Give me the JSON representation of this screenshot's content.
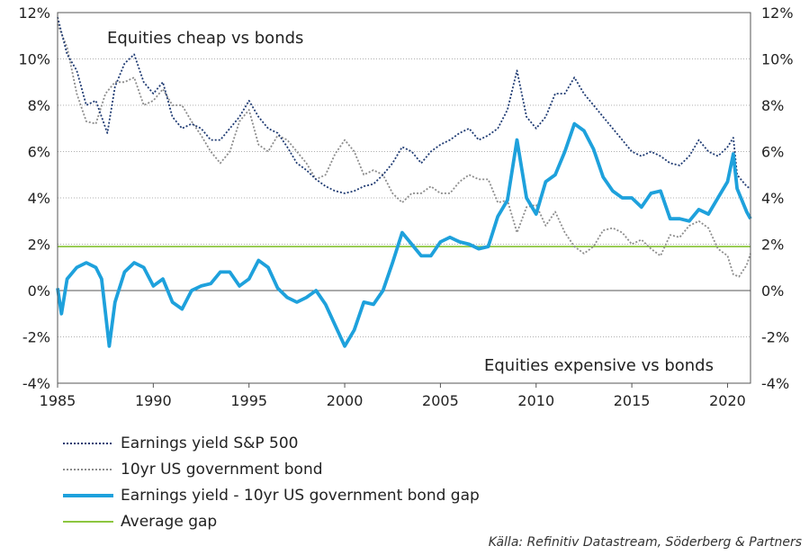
{
  "chart_data": {
    "type": "line",
    "x_range": [
      1985,
      2021.2
    ],
    "ylim": [
      -4,
      12
    ],
    "x_ticks": [
      1985,
      1990,
      1995,
      2000,
      2005,
      2010,
      2015,
      2020
    ],
    "x_tick_labels": [
      "1985",
      "1990",
      "1995",
      "2000",
      "2005",
      "2010",
      "2015",
      "2020"
    ],
    "y_ticks": [
      -4,
      -2,
      0,
      2,
      4,
      6,
      8,
      10,
      12
    ],
    "y_tick_labels": [
      "-4%",
      "-2%",
      "0%",
      "2%",
      "4%",
      "6%",
      "8%",
      "10%",
      "12%"
    ],
    "grid": "horizontal dotted",
    "legend_position": "bottom-left",
    "annotations": {
      "top": "Equities cheap vs bonds",
      "bottom": "Equities expensive vs bonds"
    },
    "series": [
      {
        "name": "Earnings yield S&P 500",
        "color": "#1f3b73",
        "style": "dotted",
        "points": [
          [
            1985,
            11.8
          ],
          [
            1985.5,
            10.2
          ],
          [
            1986,
            9.5
          ],
          [
            1986.5,
            8.0
          ],
          [
            1987,
            8.2
          ],
          [
            1987.6,
            6.8
          ],
          [
            1988,
            8.8
          ],
          [
            1988.5,
            9.8
          ],
          [
            1989,
            10.2
          ],
          [
            1989.5,
            9.0
          ],
          [
            1990,
            8.5
          ],
          [
            1990.5,
            9.0
          ],
          [
            1991,
            7.5
          ],
          [
            1991.5,
            7.0
          ],
          [
            1992,
            7.2
          ],
          [
            1992.5,
            7.0
          ],
          [
            1993,
            6.5
          ],
          [
            1993.5,
            6.5
          ],
          [
            1994,
            7.0
          ],
          [
            1994.5,
            7.5
          ],
          [
            1995,
            8.2
          ],
          [
            1995.5,
            7.5
          ],
          [
            1996,
            7.0
          ],
          [
            1996.5,
            6.8
          ],
          [
            1997,
            6.2
          ],
          [
            1997.5,
            5.5
          ],
          [
            1998,
            5.2
          ],
          [
            1998.5,
            4.8
          ],
          [
            1999,
            4.5
          ],
          [
            1999.5,
            4.3
          ],
          [
            2000,
            4.2
          ],
          [
            2000.5,
            4.3
          ],
          [
            2001,
            4.5
          ],
          [
            2001.5,
            4.6
          ],
          [
            2002,
            5.0
          ],
          [
            2002.5,
            5.5
          ],
          [
            2003,
            6.2
          ],
          [
            2003.5,
            6.0
          ],
          [
            2004,
            5.5
          ],
          [
            2004.5,
            6.0
          ],
          [
            2005,
            6.3
          ],
          [
            2005.5,
            6.5
          ],
          [
            2006,
            6.8
          ],
          [
            2006.5,
            7.0
          ],
          [
            2007,
            6.5
          ],
          [
            2007.5,
            6.7
          ],
          [
            2008,
            7.0
          ],
          [
            2008.5,
            7.8
          ],
          [
            2009,
            9.5
          ],
          [
            2009.5,
            7.5
          ],
          [
            2010,
            7.0
          ],
          [
            2010.5,
            7.5
          ],
          [
            2011,
            8.5
          ],
          [
            2011.5,
            8.5
          ],
          [
            2012,
            9.2
          ],
          [
            2012.5,
            8.5
          ],
          [
            2013,
            8.0
          ],
          [
            2013.5,
            7.5
          ],
          [
            2014,
            7.0
          ],
          [
            2014.5,
            6.5
          ],
          [
            2015,
            6.0
          ],
          [
            2015.5,
            5.8
          ],
          [
            2016,
            6.0
          ],
          [
            2016.5,
            5.8
          ],
          [
            2017,
            5.5
          ],
          [
            2017.5,
            5.4
          ],
          [
            2018,
            5.8
          ],
          [
            2018.5,
            6.5
          ],
          [
            2019,
            6.0
          ],
          [
            2019.5,
            5.8
          ],
          [
            2020,
            6.2
          ],
          [
            2020.3,
            6.6
          ],
          [
            2020.5,
            5.0
          ],
          [
            2021,
            4.5
          ],
          [
            2021.2,
            4.4
          ]
        ]
      },
      {
        "name": "10yr US government bond",
        "color": "#8c8c8c",
        "style": "dotted",
        "points": [
          [
            1985,
            11.5
          ],
          [
            1985.5,
            10.5
          ],
          [
            1986,
            8.5
          ],
          [
            1986.5,
            7.3
          ],
          [
            1987,
            7.2
          ],
          [
            1987.5,
            8.5
          ],
          [
            1988,
            9.0
          ],
          [
            1988.5,
            9.0
          ],
          [
            1989,
            9.2
          ],
          [
            1989.5,
            8.0
          ],
          [
            1990,
            8.2
          ],
          [
            1990.5,
            8.7
          ],
          [
            1991,
            8.0
          ],
          [
            1991.5,
            8.0
          ],
          [
            1992,
            7.3
          ],
          [
            1992.5,
            6.7
          ],
          [
            1993,
            6.0
          ],
          [
            1993.5,
            5.5
          ],
          [
            1994,
            6.0
          ],
          [
            1994.5,
            7.3
          ],
          [
            1995,
            7.8
          ],
          [
            1995.5,
            6.3
          ],
          [
            1996,
            6.0
          ],
          [
            1996.5,
            6.7
          ],
          [
            1997,
            6.5
          ],
          [
            1997.5,
            6.0
          ],
          [
            1998,
            5.5
          ],
          [
            1998.5,
            4.8
          ],
          [
            1999,
            5.0
          ],
          [
            1999.5,
            5.9
          ],
          [
            2000,
            6.5
          ],
          [
            2000.5,
            6.0
          ],
          [
            2001,
            5.0
          ],
          [
            2001.5,
            5.2
          ],
          [
            2002,
            5.0
          ],
          [
            2002.5,
            4.2
          ],
          [
            2003,
            3.8
          ],
          [
            2003.5,
            4.2
          ],
          [
            2004,
            4.2
          ],
          [
            2004.5,
            4.5
          ],
          [
            2005,
            4.2
          ],
          [
            2005.5,
            4.2
          ],
          [
            2006,
            4.7
          ],
          [
            2006.5,
            5.0
          ],
          [
            2007,
            4.8
          ],
          [
            2007.5,
            4.8
          ],
          [
            2008,
            3.8
          ],
          [
            2008.5,
            3.9
          ],
          [
            2009,
            2.5
          ],
          [
            2009.5,
            3.6
          ],
          [
            2010,
            3.7
          ],
          [
            2010.5,
            2.8
          ],
          [
            2011,
            3.4
          ],
          [
            2011.5,
            2.5
          ],
          [
            2012,
            1.9
          ],
          [
            2012.5,
            1.6
          ],
          [
            2013,
            1.9
          ],
          [
            2013.5,
            2.6
          ],
          [
            2014,
            2.7
          ],
          [
            2014.5,
            2.5
          ],
          [
            2015,
            2.0
          ],
          [
            2015.5,
            2.2
          ],
          [
            2016,
            1.8
          ],
          [
            2016.5,
            1.5
          ],
          [
            2017,
            2.4
          ],
          [
            2017.5,
            2.3
          ],
          [
            2018,
            2.8
          ],
          [
            2018.5,
            3.0
          ],
          [
            2019,
            2.7
          ],
          [
            2019.5,
            1.8
          ],
          [
            2020,
            1.5
          ],
          [
            2020.3,
            0.7
          ],
          [
            2020.6,
            0.6
          ],
          [
            2021,
            1.1
          ],
          [
            2021.2,
            1.6
          ]
        ]
      },
      {
        "name": "Earnings yield - 10yr US government bond gap",
        "color": "#1ea1dc",
        "style": "solid",
        "points": [
          [
            1985,
            0.1
          ],
          [
            1985.2,
            -1.0
          ],
          [
            1985.5,
            0.5
          ],
          [
            1986,
            1.0
          ],
          [
            1986.5,
            1.2
          ],
          [
            1987,
            1.0
          ],
          [
            1987.3,
            0.5
          ],
          [
            1987.7,
            -2.4
          ],
          [
            1988,
            -0.5
          ],
          [
            1988.5,
            0.8
          ],
          [
            1989,
            1.2
          ],
          [
            1989.5,
            1.0
          ],
          [
            1990,
            0.2
          ],
          [
            1990.5,
            0.5
          ],
          [
            1991,
            -0.5
          ],
          [
            1991.5,
            -0.8
          ],
          [
            1992,
            0.0
          ],
          [
            1992.5,
            0.2
          ],
          [
            1993,
            0.3
          ],
          [
            1993.5,
            0.8
          ],
          [
            1994,
            0.8
          ],
          [
            1994.5,
            0.2
          ],
          [
            1995,
            0.5
          ],
          [
            1995.5,
            1.3
          ],
          [
            1996,
            1.0
          ],
          [
            1996.5,
            0.1
          ],
          [
            1997,
            -0.3
          ],
          [
            1997.5,
            -0.5
          ],
          [
            1998,
            -0.3
          ],
          [
            1998.5,
            0.0
          ],
          [
            1999,
            -0.6
          ],
          [
            1999.5,
            -1.5
          ],
          [
            2000,
            -2.4
          ],
          [
            2000.5,
            -1.7
          ],
          [
            2001,
            -0.5
          ],
          [
            2001.5,
            -0.6
          ],
          [
            2002,
            0.0
          ],
          [
            2002.5,
            1.2
          ],
          [
            2003,
            2.5
          ],
          [
            2003.5,
            2.0
          ],
          [
            2004,
            1.5
          ],
          [
            2004.5,
            1.5
          ],
          [
            2005,
            2.1
          ],
          [
            2005.5,
            2.3
          ],
          [
            2006,
            2.1
          ],
          [
            2006.5,
            2.0
          ],
          [
            2007,
            1.8
          ],
          [
            2007.5,
            1.9
          ],
          [
            2008,
            3.2
          ],
          [
            2008.5,
            3.9
          ],
          [
            2009,
            6.5
          ],
          [
            2009.5,
            4.0
          ],
          [
            2010,
            3.3
          ],
          [
            2010.5,
            4.7
          ],
          [
            2011,
            5.0
          ],
          [
            2011.5,
            6.0
          ],
          [
            2012,
            7.2
          ],
          [
            2012.5,
            6.9
          ],
          [
            2013,
            6.1
          ],
          [
            2013.5,
            4.9
          ],
          [
            2014,
            4.3
          ],
          [
            2014.5,
            4.0
          ],
          [
            2015,
            4.0
          ],
          [
            2015.5,
            3.6
          ],
          [
            2016,
            4.2
          ],
          [
            2016.5,
            4.3
          ],
          [
            2017,
            3.1
          ],
          [
            2017.5,
            3.1
          ],
          [
            2018,
            3.0
          ],
          [
            2018.5,
            3.5
          ],
          [
            2019,
            3.3
          ],
          [
            2019.5,
            4.0
          ],
          [
            2020,
            4.7
          ],
          [
            2020.3,
            5.9
          ],
          [
            2020.5,
            4.4
          ],
          [
            2021,
            3.4
          ],
          [
            2021.2,
            3.1
          ]
        ]
      },
      {
        "name": "Average gap",
        "color": "#8cc63f",
        "style": "solid",
        "points": [
          [
            1985,
            1.9
          ],
          [
            2021.2,
            1.9
          ]
        ]
      }
    ]
  },
  "legend": [
    {
      "label": "Earnings yield S&P 500",
      "color": "#1f3b73",
      "style": "dotted"
    },
    {
      "label": "10yr US government bond",
      "color": "#8c8c8c",
      "style": "dotted"
    },
    {
      "label": "Earnings yield - 10yr US government bond gap",
      "color": "#1ea1dc",
      "style": "solid"
    },
    {
      "label": "Average gap",
      "color": "#8cc63f",
      "style": "solid"
    }
  ],
  "source_text": "Källa: Refinitiv Datastream, Söderberg & Partners"
}
